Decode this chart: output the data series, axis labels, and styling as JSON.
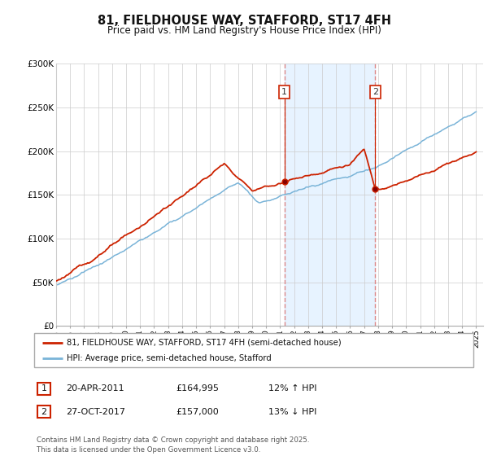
{
  "title": "81, FIELDHOUSE WAY, STAFFORD, ST17 4FH",
  "subtitle": "Price paid vs. HM Land Registry's House Price Index (HPI)",
  "legend_line1": "81, FIELDHOUSE WAY, STAFFORD, ST17 4FH (semi-detached house)",
  "legend_line2": "HPI: Average price, semi-detached house, Stafford",
  "footnote": "Contains HM Land Registry data © Crown copyright and database right 2025.\nThis data is licensed under the Open Government Licence v3.0.",
  "transaction1_date": "20-APR-2011",
  "transaction1_price": "£164,995",
  "transaction1_hpi": "12% ↑ HPI",
  "transaction1_x": 2011.3,
  "transaction1_y": 164995,
  "transaction2_date": "27-OCT-2017",
  "transaction2_price": "£157,000",
  "transaction2_hpi": "13% ↓ HPI",
  "transaction2_x": 2017.8,
  "transaction2_y": 157000,
  "hpi_color": "#7ab4d8",
  "price_color": "#cc2200",
  "shaded_color": "#ddeeff",
  "vline_color": "#dd8888",
  "background_color": "#ffffff",
  "ylim": [
    0,
    300000
  ],
  "yticks": [
    0,
    50000,
    100000,
    150000,
    200000,
    250000,
    300000
  ],
  "ytick_labels": [
    "£0",
    "£50K",
    "£100K",
    "£150K",
    "£200K",
    "£250K",
    "£300K"
  ],
  "xmin": 1995,
  "xmax": 2025.5
}
